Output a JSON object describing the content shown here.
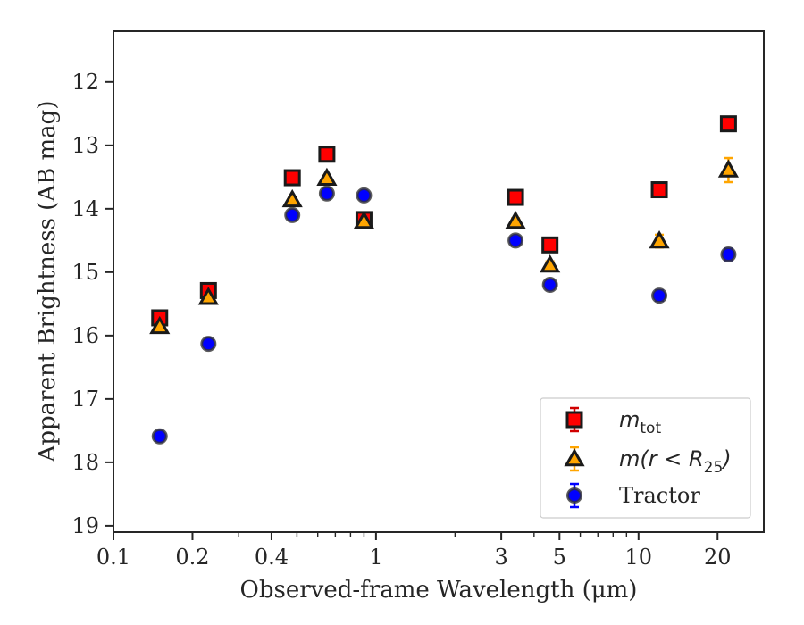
{
  "chart_data": {
    "type": "scatter",
    "xlabel": "Observed-frame Wavelength (μm)",
    "ylabel": "Apparent Brightness (AB mag)",
    "x_scale": "log",
    "xlim": [
      0.1,
      30
    ],
    "ylim": [
      19.1,
      11.2
    ],
    "y_inverted": true,
    "x_ticks": [
      0.1,
      0.2,
      0.4,
      1,
      3,
      5,
      10,
      20
    ],
    "x_tick_labels": [
      "0.1",
      "0.2",
      "0.4",
      "1",
      "3",
      "5",
      "10",
      "20"
    ],
    "y_ticks": [
      12,
      13,
      14,
      15,
      16,
      17,
      18,
      19
    ],
    "y_tick_labels": [
      "12",
      "13",
      "14",
      "15",
      "16",
      "17",
      "18",
      "19"
    ],
    "grid": false,
    "legend_position": "lower-right",
    "series": [
      {
        "name": "m_tot",
        "legend_main": "m",
        "legend_sub": "tot",
        "marker": "square",
        "color": "#ff0000",
        "errcolor": "#d00000",
        "x": [
          0.15,
          0.23,
          0.48,
          0.65,
          0.9,
          3.4,
          4.6,
          12.0,
          22.0
        ],
        "y": [
          15.72,
          15.29,
          13.51,
          13.14,
          14.17,
          13.82,
          14.57,
          13.7,
          12.66
        ],
        "yerr": [
          0.06,
          0.05,
          0.04,
          0.04,
          0.05,
          0.04,
          0.05,
          0.06,
          0.07
        ]
      },
      {
        "name": "m(r < R25)",
        "legend_main": "m(r < R",
        "legend_sub": "25",
        "legend_tail": ")",
        "marker": "triangle",
        "color": "#ffa500",
        "errcolor": "#ffa500",
        "x": [
          0.15,
          0.23,
          0.48,
          0.65,
          0.9,
          3.4,
          4.6,
          12.0,
          22.0
        ],
        "y": [
          15.86,
          15.4,
          13.86,
          13.52,
          14.2,
          14.2,
          14.89,
          14.51,
          13.39
        ],
        "yerr": [
          0.05,
          0.05,
          0.04,
          0.04,
          0.04,
          0.05,
          0.06,
          0.1,
          0.19
        ]
      },
      {
        "name": "Tractor",
        "marker": "circle",
        "color": "#0000ff",
        "errcolor": "#0000ff",
        "x": [
          0.15,
          0.23,
          0.48,
          0.65,
          0.9,
          3.4,
          4.6,
          12.0,
          22.0
        ],
        "y": [
          17.59,
          16.13,
          14.1,
          13.76,
          13.79,
          14.5,
          15.2,
          15.37,
          14.72
        ],
        "yerr": [
          0.07,
          0.06,
          0.05,
          0.05,
          0.06,
          0.06,
          0.07,
          0.08,
          0.09
        ]
      }
    ]
  }
}
